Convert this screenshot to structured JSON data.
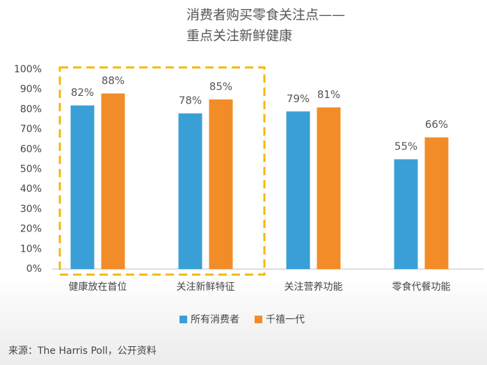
{
  "chart_data": {
    "type": "bar",
    "title": "消费者购买零食关注点——",
    "subtitle": "重点关注新鲜健康",
    "categories": [
      "健康放在首位",
      "关注新鲜特征",
      "关注营养功能",
      "零食代餐功能"
    ],
    "series": [
      {
        "name": "所有消费者",
        "color": "#3a9fd6",
        "values": [
          82,
          78,
          79,
          55
        ],
        "value_labels": [
          "82%",
          "78%",
          "79%",
          "55%"
        ]
      },
      {
        "name": "千禧一代",
        "color": "#f28c28",
        "values": [
          88,
          85,
          81,
          66
        ],
        "value_labels": [
          "88%",
          "85%",
          "81%",
          "66%"
        ]
      }
    ],
    "ylim": [
      0,
      100
    ],
    "yticks": [
      {
        "value": 0,
        "label": "0%"
      },
      {
        "value": 10,
        "label": "10%"
      },
      {
        "value": 20,
        "label": "20%"
      },
      {
        "value": 30,
        "label": "30%"
      },
      {
        "value": 40,
        "label": "40%"
      },
      {
        "value": 50,
        "label": "50%"
      },
      {
        "value": 60,
        "label": "60%"
      },
      {
        "value": 70,
        "label": "70%"
      },
      {
        "value": 80,
        "label": "80%"
      },
      {
        "value": 90,
        "label": "90%"
      },
      {
        "value": 100,
        "label": "100%"
      }
    ],
    "grid": false,
    "source": "来源：The Harris Poll，公开资料"
  }
}
